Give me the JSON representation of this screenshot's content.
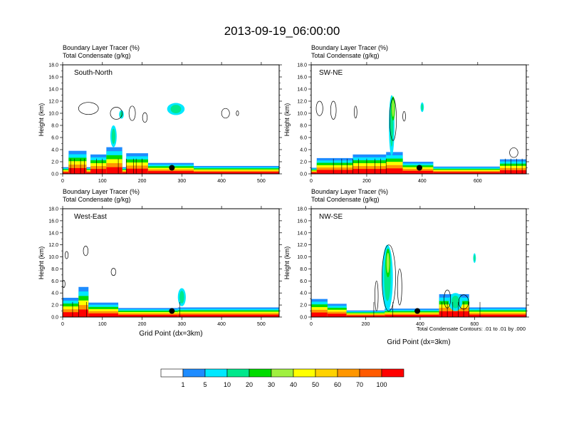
{
  "title": "2013-09-19_06:00:00",
  "footnote": "Total Condensate Contours: .01 to .01 by .000",
  "colorbar": {
    "colors": [
      "#ffffff",
      "#1e8cff",
      "#00e8ff",
      "#00e88c",
      "#00dc00",
      "#a0f040",
      "#ffff00",
      "#ffd200",
      "#ff9600",
      "#ff5a00",
      "#ff0000"
    ],
    "labels": [
      "1",
      "5",
      "10",
      "20",
      "30",
      "40",
      "50",
      "60",
      "70",
      "100"
    ]
  },
  "panels": [
    {
      "label": "South-North",
      "header": [
        "Boundary Layer Tracer   (%)",
        "Total Condensate   (g/kg)"
      ],
      "ylabel": "Height (km)",
      "xlabel": "",
      "yticks": [
        "0.0",
        "2.0",
        "4.0",
        "6.0",
        "8.0",
        "10.0",
        "12.0",
        "14.0",
        "16.0",
        "18.0"
      ],
      "xticks": [
        "0",
        "100",
        "200",
        "300",
        "400",
        "500"
      ],
      "xmax": 545,
      "marker": {
        "x": 275,
        "z": 1.0
      },
      "plumes": [
        {
          "x0": 0,
          "x1": 545,
          "h": 1.1,
          "c": 6
        },
        {
          "x0": 15,
          "x1": 60,
          "h": 3.8,
          "c": 3
        },
        {
          "x0": 70,
          "x1": 110,
          "h": 3.2,
          "c": 3
        },
        {
          "x0": 110,
          "x1": 150,
          "h": 4.4,
          "c": 2
        },
        {
          "x0": 160,
          "x1": 215,
          "h": 3.4,
          "c": 3
        },
        {
          "x0": 215,
          "x1": 330,
          "h": 1.8,
          "c": 3
        },
        {
          "x0": 330,
          "x1": 545,
          "h": 1.3,
          "c": 3
        }
      ],
      "blobs": [
        {
          "x": 128,
          "z": 6.2,
          "rx": 8,
          "rz": 1.8,
          "c": 2
        },
        {
          "x": 148,
          "z": 9.8,
          "rx": 6,
          "rz": 0.7,
          "c": 2
        },
        {
          "x": 285,
          "z": 10.7,
          "rx": 22,
          "rz": 1.0,
          "c": 2
        }
      ],
      "outlines": [
        {
          "x": 65,
          "z": 10.8,
          "rx": 25,
          "rz": 1.0
        },
        {
          "x": 135,
          "z": 10.0,
          "rx": 15,
          "rz": 1.0
        },
        {
          "x": 175,
          "z": 10.0,
          "rx": 8,
          "rz": 1.2
        },
        {
          "x": 207,
          "z": 9.3,
          "rx": 6,
          "rz": 0.8
        },
        {
          "x": 410,
          "z": 10.0,
          "rx": 10,
          "rz": 0.8
        },
        {
          "x": 440,
          "z": 10.0,
          "rx": 3,
          "rz": 0.4
        }
      ],
      "spikes": [
        20,
        30,
        45,
        55,
        85,
        100,
        140,
        160,
        178,
        185,
        200
      ]
    },
    {
      "label": "SW-NE",
      "header": [
        "Boundary Layer Tracer   (%)",
        "Total Condensate   (g/kg)"
      ],
      "ylabel": "Height (km)",
      "xlabel": "",
      "yticks": [
        "0.0",
        "2.0",
        "4.0",
        "6.0",
        "8.0",
        "10.0",
        "12.0",
        "14.0",
        "16.0",
        "18.0"
      ],
      "xticks": [
        "0",
        "200",
        "400",
        "600"
      ],
      "xmax": 775,
      "marker": {
        "x": 390,
        "z": 1.0
      },
      "plumes": [
        {
          "x0": 0,
          "x1": 775,
          "h": 1.0,
          "c": 6
        },
        {
          "x0": 20,
          "x1": 150,
          "h": 2.6,
          "c": 3
        },
        {
          "x0": 150,
          "x1": 270,
          "h": 3.2,
          "c": 2
        },
        {
          "x0": 270,
          "x1": 330,
          "h": 3.6,
          "c": 2
        },
        {
          "x0": 330,
          "x1": 440,
          "h": 2.0,
          "c": 3
        },
        {
          "x0": 440,
          "x1": 680,
          "h": 1.2,
          "c": 3
        },
        {
          "x0": 680,
          "x1": 775,
          "h": 2.4,
          "c": 3
        }
      ],
      "blobs": [
        {
          "x": 290,
          "z": 8.0,
          "rx": 10,
          "rz": 5.0,
          "c": 2
        },
        {
          "x": 295,
          "z": 10.8,
          "rx": 7,
          "rz": 2.0,
          "c": 4
        },
        {
          "x": 400,
          "z": 11.0,
          "rx": 6,
          "rz": 0.8,
          "c": 2
        }
      ],
      "outlines": [
        {
          "x": 30,
          "z": 10.8,
          "rx": 12,
          "rz": 1.2
        },
        {
          "x": 80,
          "z": 10.5,
          "rx": 10,
          "rz": 1.5
        },
        {
          "x": 160,
          "z": 10.2,
          "rx": 5,
          "rz": 1.0
        },
        {
          "x": 295,
          "z": 9.0,
          "rx": 12,
          "rz": 3.5
        },
        {
          "x": 335,
          "z": 9.5,
          "rx": 5,
          "rz": 0.8
        },
        {
          "x": 730,
          "z": 3.5,
          "rx": 15,
          "rz": 0.8
        }
      ],
      "spikes": [
        80,
        110,
        130,
        150,
        170,
        200,
        230,
        250,
        270,
        700,
        720,
        740,
        760
      ]
    },
    {
      "label": "West-East",
      "header": [
        "Boundary Layer Tracer   (%)",
        "Total Condensate   (g/kg)"
      ],
      "ylabel": "Height (km)",
      "xlabel": "Grid Point (dx=3km)",
      "yticks": [
        "0.0",
        "2.0",
        "4.0",
        "6.0",
        "8.0",
        "10.0",
        "12.0",
        "14.0",
        "16.0",
        "18.0"
      ],
      "xticks": [
        "0",
        "100",
        "200",
        "300",
        "400",
        "500"
      ],
      "xmax": 545,
      "marker": {
        "x": 275,
        "z": 1.0
      },
      "plumes": [
        {
          "x0": 0,
          "x1": 545,
          "h": 1.0,
          "c": 6
        },
        {
          "x0": 0,
          "x1": 40,
          "h": 3.2,
          "c": 3
        },
        {
          "x0": 40,
          "x1": 65,
          "h": 5.0,
          "c": 3
        },
        {
          "x0": 65,
          "x1": 140,
          "h": 2.4,
          "c": 3
        },
        {
          "x0": 140,
          "x1": 290,
          "h": 1.5,
          "c": 3
        },
        {
          "x0": 290,
          "x1": 545,
          "h": 1.6,
          "c": 3
        }
      ],
      "blobs": [
        {
          "x": 300,
          "z": 3.3,
          "rx": 10,
          "rz": 1.5,
          "c": 2
        }
      ],
      "outlines": [
        {
          "x": 10,
          "z": 10.3,
          "rx": 4,
          "rz": 0.6
        },
        {
          "x": 58,
          "z": 11.0,
          "rx": 6,
          "rz": 0.8
        },
        {
          "x": 128,
          "z": 7.5,
          "rx": 6,
          "rz": 0.6
        },
        {
          "x": 3,
          "z": 5.5,
          "rx": 3,
          "rz": 0.6
        }
      ],
      "spikes": [
        25,
        40,
        60,
        295
      ]
    },
    {
      "label": "NW-SE",
      "header": [
        "Boundary Layer Tracer   (%)",
        "Total Condensate   (g/kg)"
      ],
      "ylabel": "Height (km)",
      "xlabel": "Grid Point (dx=3km)",
      "yticks": [
        "0.0",
        "2.0",
        "4.0",
        "6.0",
        "8.0",
        "10.0",
        "12.0",
        "14.0",
        "16.0",
        "18.0"
      ],
      "xticks": [
        "0",
        "200",
        "400",
        "600"
      ],
      "xmax": 790,
      "marker": {
        "x": 390,
        "z": 1.0
      },
      "plumes": [
        {
          "x0": 0,
          "x1": 790,
          "h": 0.9,
          "c": 6
        },
        {
          "x0": 0,
          "x1": 60,
          "h": 3.0,
          "c": 3
        },
        {
          "x0": 60,
          "x1": 130,
          "h": 2.2,
          "c": 3
        },
        {
          "x0": 130,
          "x1": 270,
          "h": 1.1,
          "c": 3
        },
        {
          "x0": 270,
          "x1": 470,
          "h": 1.4,
          "c": 3
        },
        {
          "x0": 470,
          "x1": 580,
          "h": 3.8,
          "c": 3
        },
        {
          "x0": 580,
          "x1": 790,
          "h": 1.6,
          "c": 3
        }
      ],
      "blobs": [
        {
          "x": 280,
          "z": 6.5,
          "rx": 20,
          "rz": 5.5,
          "c": 2
        },
        {
          "x": 282,
          "z": 9.0,
          "rx": 9,
          "rz": 2.4,
          "c": 4
        },
        {
          "x": 600,
          "z": 9.8,
          "rx": 5,
          "rz": 0.8,
          "c": 2
        },
        {
          "x": 530,
          "z": 2.5,
          "rx": 25,
          "rz": 1.5,
          "c": 2
        }
      ],
      "outlines": [
        {
          "x": 240,
          "z": 3.5,
          "rx": 6,
          "rz": 2.5
        },
        {
          "x": 285,
          "z": 6.5,
          "rx": 25,
          "rz": 5.5
        },
        {
          "x": 325,
          "z": 5.0,
          "rx": 8,
          "rz": 3.0
        },
        {
          "x": 500,
          "z": 3.0,
          "rx": 12,
          "rz": 1.5
        },
        {
          "x": 560,
          "z": 2.5,
          "rx": 18,
          "rz": 1.2
        }
      ],
      "spikes": [
        230,
        300,
        480,
        500,
        520,
        540,
        560,
        580,
        620
      ]
    }
  ]
}
